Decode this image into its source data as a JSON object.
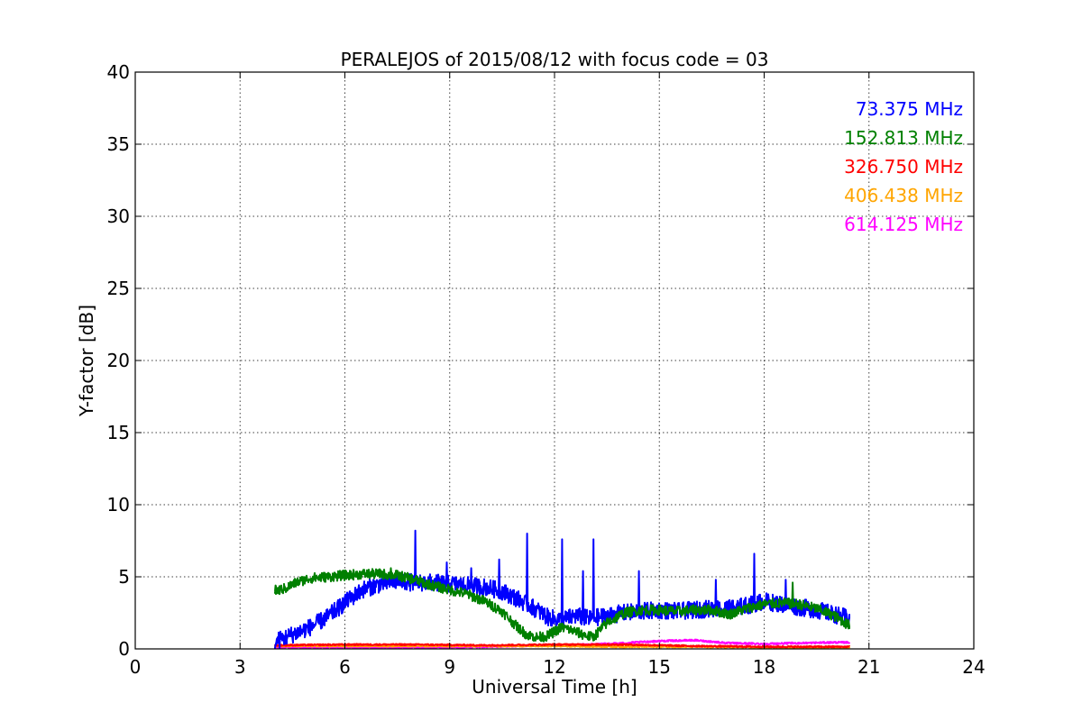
{
  "chart_data": {
    "type": "line",
    "title": "PERALEJOS of 2015/08/12 with focus code = 03",
    "xlabel": "Universal Time [h]",
    "ylabel": "Y-factor [dB]",
    "xlim": [
      0,
      24
    ],
    "ylim": [
      0,
      40
    ],
    "xticks": [
      0,
      3,
      6,
      9,
      12,
      15,
      18,
      21,
      24
    ],
    "yticks": [
      0,
      5,
      10,
      15,
      20,
      25,
      30,
      35,
      40
    ],
    "grid": true,
    "legend_position": "top-right",
    "series": [
      {
        "name": "73.375 MHz",
        "color": "#0000ff",
        "noise": 0.6,
        "x": [
          4.0,
          4.1,
          4.5,
          5.0,
          5.5,
          6.0,
          6.5,
          7.0,
          7.5,
          8.0,
          8.5,
          9.0,
          9.5,
          10.0,
          10.5,
          11.0,
          11.5,
          11.8,
          12.2,
          12.6,
          13.0,
          13.5,
          14.0,
          14.5,
          15.0,
          15.5,
          16.0,
          16.5,
          17.0,
          17.5,
          18.0,
          18.5,
          19.0,
          19.5,
          20.0,
          20.45
        ],
        "y": [
          0.4,
          0.6,
          1.0,
          1.5,
          2.2,
          3.2,
          4.1,
          4.5,
          4.7,
          4.6,
          4.6,
          4.5,
          4.4,
          4.3,
          4.0,
          3.4,
          2.7,
          2.2,
          2.0,
          2.3,
          2.1,
          2.3,
          2.5,
          2.6,
          2.7,
          2.6,
          2.7,
          2.8,
          2.8,
          3.0,
          3.3,
          3.1,
          2.9,
          2.7,
          2.4,
          2.1
        ],
        "spikes": [
          [
            8.0,
            8.2
          ],
          [
            12.2,
            7.6
          ],
          [
            11.2,
            8.0
          ],
          [
            13.1,
            7.6
          ],
          [
            17.7,
            6.6
          ],
          [
            8.9,
            6.0
          ],
          [
            10.4,
            6.2
          ],
          [
            14.4,
            5.4
          ],
          [
            9.6,
            5.6
          ],
          [
            12.8,
            5.4
          ],
          [
            16.6,
            4.8
          ],
          [
            18.6,
            4.8
          ]
        ]
      },
      {
        "name": "152.813 MHz",
        "color": "#008000",
        "noise": 0.35,
        "x": [
          4.0,
          4.3,
          4.6,
          5.0,
          5.5,
          6.0,
          6.5,
          7.0,
          7.5,
          8.0,
          8.5,
          9.0,
          9.5,
          10.0,
          10.5,
          10.9,
          11.2,
          11.5,
          11.8,
          12.2,
          12.5,
          12.8,
          13.1,
          13.5,
          14.0,
          14.5,
          15.0,
          15.5,
          16.0,
          16.5,
          17.0,
          17.5,
          18.0,
          18.5,
          19.0,
          19.5,
          20.0,
          20.45
        ],
        "y": [
          4.0,
          4.2,
          4.6,
          4.9,
          5.0,
          5.1,
          5.2,
          5.2,
          5.1,
          4.8,
          4.4,
          4.1,
          3.8,
          3.3,
          2.6,
          1.6,
          1.0,
          0.8,
          0.9,
          1.5,
          1.3,
          1.0,
          0.8,
          1.8,
          2.5,
          2.7,
          2.7,
          2.6,
          2.7,
          2.7,
          2.4,
          2.8,
          3.1,
          3.2,
          3.1,
          2.8,
          2.3,
          1.6
        ],
        "spikes": [
          [
            4.0,
            4.4
          ],
          [
            7.3,
            5.6
          ],
          [
            18.8,
            4.6
          ]
        ]
      },
      {
        "name": "326.750 MHz",
        "color": "#ff0000",
        "noise": 0.05,
        "x": [
          4.0,
          6.0,
          8.0,
          10.0,
          12.0,
          14.0,
          16.0,
          18.0,
          20.45
        ],
        "y": [
          0.25,
          0.3,
          0.3,
          0.25,
          0.3,
          0.3,
          0.2,
          0.15,
          0.15
        ],
        "spikes": []
      },
      {
        "name": "406.438 MHz",
        "color": "#ffa500",
        "noise": 0.05,
        "x": [
          4.0,
          6.0,
          8.0,
          10.0,
          12.0,
          14.0,
          16.0,
          18.0,
          20.45
        ],
        "y": [
          0.2,
          0.2,
          0.2,
          0.2,
          0.2,
          0.15,
          0.15,
          0.1,
          0.1
        ],
        "spikes": []
      },
      {
        "name": "614.125 MHz",
        "color": "#ff00ff",
        "noise": 0.06,
        "x": [
          4.0,
          6.0,
          8.0,
          10.0,
          11.0,
          12.0,
          13.0,
          14.0,
          15.0,
          16.0,
          16.5,
          17.0,
          18.0,
          19.0,
          20.0,
          20.45
        ],
        "y": [
          0.1,
          0.1,
          0.1,
          0.15,
          0.2,
          0.25,
          0.3,
          0.4,
          0.55,
          0.6,
          0.5,
          0.4,
          0.35,
          0.4,
          0.45,
          0.45
        ],
        "spikes": []
      }
    ]
  }
}
